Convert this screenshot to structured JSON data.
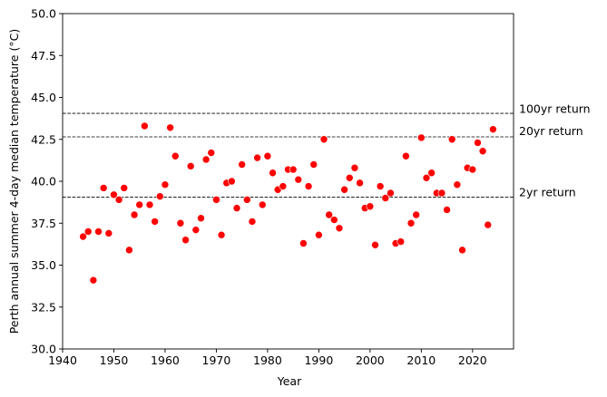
{
  "chart_data": {
    "type": "scatter",
    "xlabel": "Year",
    "ylabel": "Perth annual summer 4-day median temperature (°C)",
    "xlim": [
      1940,
      2028
    ],
    "ylim": [
      30.0,
      50.0
    ],
    "xticks": [
      1940,
      1950,
      1960,
      1970,
      1980,
      1990,
      2000,
      2010,
      2020
    ],
    "yticks": [
      30.0,
      32.5,
      35.0,
      37.5,
      40.0,
      42.5,
      45.0,
      47.5,
      50.0
    ],
    "marker_color": "#ff0000",
    "grid": false,
    "reference_lines": [
      {
        "label": "100yr return",
        "value": 44.05
      },
      {
        "label": "20yr return",
        "value": 42.65
      },
      {
        "label": "2yr return",
        "value": 39.05
      }
    ],
    "x": [
      1944,
      1945,
      1946,
      1947,
      1948,
      1949,
      1950,
      1951,
      1952,
      1953,
      1954,
      1955,
      1956,
      1957,
      1958,
      1959,
      1960,
      1961,
      1962,
      1963,
      1964,
      1965,
      1966,
      1967,
      1968,
      1969,
      1970,
      1971,
      1972,
      1973,
      1974,
      1975,
      1976,
      1977,
      1978,
      1979,
      1980,
      1981,
      1982,
      1983,
      1984,
      1985,
      1986,
      1987,
      1988,
      1989,
      1990,
      1991,
      1992,
      1993,
      1994,
      1995,
      1996,
      1997,
      1998,
      1999,
      2000,
      2001,
      2002,
      2003,
      2004,
      2005,
      2006,
      2007,
      2008,
      2009,
      2010,
      2011,
      2012,
      2013,
      2014,
      2015,
      2016,
      2017,
      2018,
      2019,
      2020,
      2021,
      2022,
      2023,
      2024
    ],
    "y": [
      36.7,
      37.0,
      34.1,
      37.0,
      39.6,
      36.9,
      39.2,
      38.9,
      39.6,
      35.9,
      38.0,
      38.6,
      43.3,
      38.6,
      37.6,
      39.1,
      39.8,
      43.2,
      41.5,
      37.5,
      36.5,
      40.9,
      37.1,
      37.8,
      41.3,
      41.7,
      38.9,
      36.8,
      39.9,
      40.0,
      38.4,
      41.0,
      38.9,
      37.6,
      41.4,
      38.6,
      41.5,
      40.5,
      39.5,
      39.7,
      40.7,
      40.7,
      40.1,
      36.3,
      39.7,
      41.0,
      36.8,
      42.5,
      38.0,
      37.7,
      37.2,
      39.5,
      40.2,
      40.8,
      39.9,
      38.4,
      38.5,
      36.2,
      39.7,
      39.0,
      39.3,
      36.3,
      36.4,
      41.5,
      37.5,
      38.0,
      42.6,
      40.2,
      40.5,
      39.3,
      39.3,
      38.3,
      42.5,
      39.8,
      35.9,
      40.8,
      40.7,
      42.3,
      41.8,
      37.4,
      43.1
    ]
  }
}
